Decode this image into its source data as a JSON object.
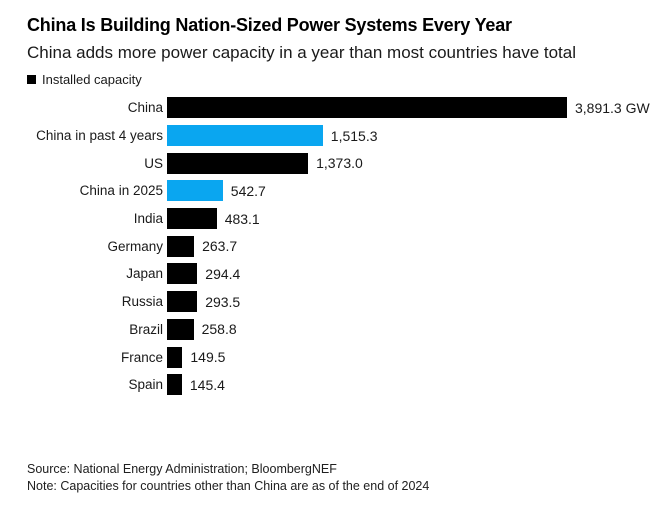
{
  "header": {
    "title": "China Is Building Nation-Sized Power Systems Every Year",
    "subtitle": "China adds more power capacity in a year than most countries have total",
    "legend": {
      "label": "Installed capacity",
      "swatch_color": "#000000"
    }
  },
  "chart_data": {
    "type": "bar",
    "orientation": "horizontal",
    "unit": "GW",
    "xlim": [
      0,
      3891.3
    ],
    "grid": false,
    "legend_position": "top-left",
    "colors": {
      "black": "#000000",
      "blue": "#0aa6f0"
    },
    "categories": [
      "China",
      "China in past 4 years",
      "US",
      "China in 2025",
      "India",
      "Germany",
      "Japan",
      "Russia",
      "Brazil",
      "France",
      "Spain"
    ],
    "values": [
      3891.3,
      1515.3,
      1373.0,
      542.7,
      483.1,
      263.7,
      294.4,
      293.5,
      258.8,
      149.5,
      145.4
    ],
    "rows": [
      {
        "label": "China",
        "value": 3891.3,
        "display": "3,891.3 GW",
        "color": "black"
      },
      {
        "label": "China in past 4 years",
        "value": 1515.3,
        "display": "1,515.3",
        "color": "blue"
      },
      {
        "label": "US",
        "value": 1373.0,
        "display": "1,373.0",
        "color": "black"
      },
      {
        "label": "China in 2025",
        "value": 542.7,
        "display": "542.7",
        "color": "blue"
      },
      {
        "label": "India",
        "value": 483.1,
        "display": "483.1",
        "color": "black"
      },
      {
        "label": "Germany",
        "value": 263.7,
        "display": "263.7",
        "color": "black"
      },
      {
        "label": "Japan",
        "value": 294.4,
        "display": "294.4",
        "color": "black"
      },
      {
        "label": "Russia",
        "value": 293.5,
        "display": "293.5",
        "color": "black"
      },
      {
        "label": "Brazil",
        "value": 258.8,
        "display": "258.8",
        "color": "black"
      },
      {
        "label": "France",
        "value": 149.5,
        "display": "149.5",
        "color": "black"
      },
      {
        "label": "Spain",
        "value": 145.4,
        "display": "145.4",
        "color": "black"
      }
    ]
  },
  "footer": {
    "source": "Source: National Energy Administration; BloombergNEF",
    "note": "Note: Capacities for countries other than China are as of the end of 2024"
  }
}
